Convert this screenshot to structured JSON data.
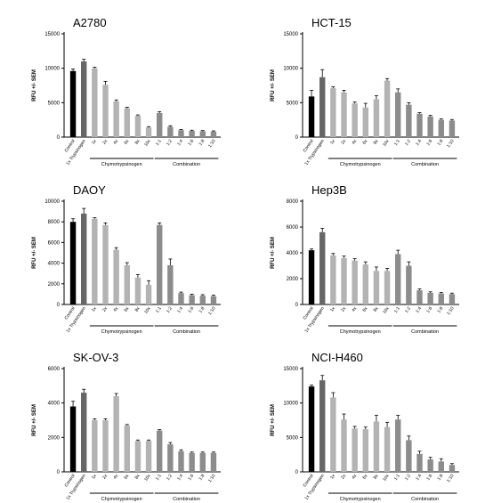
{
  "chart_data": [
    {
      "type": "bar",
      "title": "A2780",
      "ylabel": "RFU +/- SEM",
      "ylim": [
        0,
        15000
      ],
      "yticks": [
        0,
        5000,
        10000,
        15000
      ],
      "categories": [
        "Control",
        "1x Trypsinogen",
        "1x",
        "2x",
        "4x",
        "6x",
        "8x",
        "10x",
        "1:1",
        "1:2",
        "1:4",
        "1:6",
        "1:8",
        "1:10"
      ],
      "values": [
        9600,
        11000,
        10000,
        7600,
        5200,
        4200,
        3100,
        1400,
        3500,
        1500,
        1000,
        900,
        850,
        800
      ],
      "errors": [
        300,
        300,
        150,
        500,
        200,
        150,
        120,
        120,
        200,
        150,
        100,
        100,
        100,
        100
      ],
      "colors": [
        "#000000",
        "#666666",
        "#b3b3b3",
        "#b3b3b3",
        "#b3b3b3",
        "#b3b3b3",
        "#b3b3b3",
        "#b3b3b3",
        "#8c8c8c",
        "#8c8c8c",
        "#8c8c8c",
        "#8c8c8c",
        "#8c8c8c",
        "#8c8c8c"
      ],
      "groups": [
        {
          "label": "Chymotrypsinogen",
          "start": 2,
          "end": 7
        },
        {
          "label": "Combination",
          "start": 8,
          "end": 13
        }
      ]
    },
    {
      "type": "bar",
      "title": "HCT-15",
      "ylabel": "RFU +/- SEM",
      "ylim": [
        0,
        15000
      ],
      "yticks": [
        0,
        5000,
        10000,
        15000
      ],
      "categories": [
        "Control",
        "1x Trypsinogen",
        "1x",
        "2x",
        "4x",
        "6x",
        "8x",
        "10x",
        "1:1",
        "1:2",
        "1:4",
        "1:6",
        "1:8",
        "1:10"
      ],
      "values": [
        5900,
        8700,
        7100,
        6500,
        4900,
        4300,
        5500,
        8200,
        6500,
        4700,
        3400,
        3000,
        2500,
        2400
      ],
      "errors": [
        900,
        1100,
        200,
        300,
        200,
        600,
        500,
        300,
        500,
        300,
        150,
        150,
        150,
        150
      ],
      "colors": [
        "#000000",
        "#666666",
        "#b3b3b3",
        "#b3b3b3",
        "#b3b3b3",
        "#b3b3b3",
        "#b3b3b3",
        "#b3b3b3",
        "#8c8c8c",
        "#8c8c8c",
        "#8c8c8c",
        "#8c8c8c",
        "#8c8c8c",
        "#8c8c8c"
      ],
      "groups": [
        {
          "label": "Chymotrypsinogen",
          "start": 2,
          "end": 7
        },
        {
          "label": "Combination",
          "start": 8,
          "end": 13
        }
      ]
    },
    {
      "type": "bar",
      "title": "DAOY",
      "ylabel": "RFU +/- SEM",
      "ylim": [
        0,
        10000
      ],
      "yticks": [
        0,
        2000,
        4000,
        6000,
        8000,
        10000
      ],
      "categories": [
        "Control",
        "1x Trypsinogen",
        "1x",
        "2x",
        "4x",
        "6x",
        "8x",
        "10x",
        "1:1",
        "1:2",
        "1:4",
        "1:6",
        "1:8",
        "1:10"
      ],
      "values": [
        8000,
        8800,
        8300,
        7700,
        5300,
        3800,
        2600,
        1900,
        7700,
        3800,
        1100,
        900,
        850,
        800
      ],
      "errors": [
        300,
        500,
        100,
        200,
        200,
        250,
        300,
        400,
        200,
        600,
        100,
        100,
        100,
        100
      ],
      "colors": [
        "#000000",
        "#666666",
        "#b3b3b3",
        "#b3b3b3",
        "#b3b3b3",
        "#b3b3b3",
        "#b3b3b3",
        "#b3b3b3",
        "#8c8c8c",
        "#8c8c8c",
        "#8c8c8c",
        "#8c8c8c",
        "#8c8c8c",
        "#8c8c8c"
      ],
      "groups": [
        {
          "label": "Chymotrypsinogen",
          "start": 2,
          "end": 7
        },
        {
          "label": "Combination",
          "start": 8,
          "end": 13
        }
      ]
    },
    {
      "type": "bar",
      "title": "Hep3B",
      "ylabel": "RFU +/- SEM",
      "ylim": [
        0,
        8000
      ],
      "yticks": [
        0,
        2000,
        4000,
        6000,
        8000
      ],
      "categories": [
        "Control",
        "1x Trypsinogen",
        "1x",
        "2x",
        "4x",
        "6x",
        "8x",
        "10x",
        "1:1",
        "1:2",
        "1:4",
        "1:6",
        "1:8",
        "1:10"
      ],
      "values": [
        4200,
        5600,
        3800,
        3600,
        3400,
        3100,
        2600,
        2600,
        3900,
        3000,
        1100,
        900,
        850,
        800
      ],
      "errors": [
        100,
        300,
        150,
        150,
        150,
        200,
        300,
        200,
        300,
        300,
        100,
        80,
        80,
        80
      ],
      "colors": [
        "#000000",
        "#666666",
        "#b3b3b3",
        "#b3b3b3",
        "#b3b3b3",
        "#b3b3b3",
        "#b3b3b3",
        "#b3b3b3",
        "#8c8c8c",
        "#8c8c8c",
        "#8c8c8c",
        "#8c8c8c",
        "#8c8c8c",
        "#8c8c8c"
      ],
      "groups": [
        {
          "label": "Chymotrypsinogen",
          "start": 2,
          "end": 7
        },
        {
          "label": "Combination",
          "start": 8,
          "end": 13
        }
      ]
    },
    {
      "type": "bar",
      "title": "SK-OV-3",
      "ylabel": "RFU +/- SEM",
      "ylim": [
        0,
        6000
      ],
      "yticks": [
        0,
        2000,
        4000,
        6000
      ],
      "categories": [
        "Control",
        "1x Trypsinogen",
        "1x",
        "2x",
        "4x",
        "6x",
        "8x",
        "10x",
        "1:1",
        "1:2",
        "1:4",
        "1:6",
        "1:8",
        "1:10"
      ],
      "values": [
        3800,
        4600,
        3000,
        3000,
        4400,
        2700,
        1800,
        1800,
        2400,
        1600,
        1200,
        1100,
        1100,
        1100
      ],
      "errors": [
        300,
        200,
        80,
        80,
        150,
        50,
        50,
        50,
        50,
        100,
        80,
        50,
        50,
        50
      ],
      "colors": [
        "#000000",
        "#666666",
        "#b3b3b3",
        "#b3b3b3",
        "#b3b3b3",
        "#b3b3b3",
        "#b3b3b3",
        "#b3b3b3",
        "#8c8c8c",
        "#8c8c8c",
        "#8c8c8c",
        "#8c8c8c",
        "#8c8c8c",
        "#8c8c8c"
      ],
      "groups": [
        {
          "label": "Chymotrypsinogen",
          "start": 2,
          "end": 7
        },
        {
          "label": "Combination",
          "start": 8,
          "end": 13
        }
      ]
    },
    {
      "type": "bar",
      "title": "NCI-H460",
      "ylabel": "RFU +/- SEM",
      "ylim": [
        0,
        15000
      ],
      "yticks": [
        0,
        5000,
        10000,
        15000
      ],
      "categories": [
        "Control",
        "1x Trypsinogen",
        "1x",
        "2x",
        "4x",
        "6x",
        "8x",
        "10x",
        "1:1",
        "1:2",
        "1:4",
        "1:6",
        "1:8",
        "1:10"
      ],
      "values": [
        12400,
        13300,
        10800,
        7600,
        6300,
        6200,
        7300,
        6500,
        7600,
        4600,
        2600,
        1800,
        1500,
        1000
      ],
      "errors": [
        200,
        700,
        700,
        800,
        300,
        300,
        900,
        700,
        600,
        600,
        400,
        300,
        400,
        200
      ],
      "colors": [
        "#000000",
        "#666666",
        "#b3b3b3",
        "#b3b3b3",
        "#b3b3b3",
        "#b3b3b3",
        "#b3b3b3",
        "#b3b3b3",
        "#8c8c8c",
        "#8c8c8c",
        "#8c8c8c",
        "#8c8c8c",
        "#8c8c8c",
        "#8c8c8c"
      ],
      "groups": [
        {
          "label": "Chymotrypsinogen",
          "start": 2,
          "end": 7
        },
        {
          "label": "Combination",
          "start": 8,
          "end": 13
        }
      ]
    }
  ]
}
